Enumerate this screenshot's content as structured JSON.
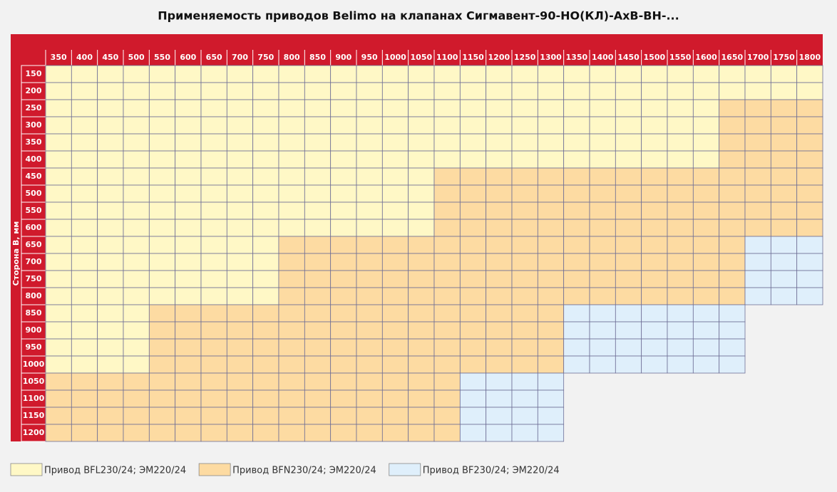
{
  "title": "Применяемость приводов Belimo на клапанах Сигмавент-90-НО(КЛ)-АхВ-ВН-...",
  "row_axis_label": "Сторона B, мм",
  "columns": [
    "350",
    "400",
    "450",
    "500",
    "550",
    "600",
    "650",
    "700",
    "750",
    "800",
    "850",
    "900",
    "950",
    "1000",
    "1050",
    "1100",
    "1150",
    "1200",
    "1250",
    "1300",
    "1350",
    "1400",
    "1450",
    "1500",
    "1550",
    "1600",
    "1650",
    "1700",
    "1750",
    "1800"
  ],
  "legend": [
    {
      "label": "Привод BFL230/24; ЭМ220/24",
      "color": "#fff8c6"
    },
    {
      "label": "Привод BFN230/24; ЭМ220/24",
      "color": "#fddba2"
    },
    {
      "label": "Привод BF230/24; ЭМ220/24",
      "color": "#dfeffb"
    }
  ],
  "rows": [
    {
      "label": "150",
      "cells": [
        0,
        0,
        0,
        0,
        0,
        0,
        0,
        0,
        0,
        0,
        0,
        0,
        0,
        0,
        0,
        0,
        0,
        0,
        0,
        0,
        0,
        0,
        0,
        0,
        0,
        0,
        0,
        0,
        0,
        0
      ]
    },
    {
      "label": "200",
      "cells": [
        0,
        0,
        0,
        0,
        0,
        0,
        0,
        0,
        0,
        0,
        0,
        0,
        0,
        0,
        0,
        0,
        0,
        0,
        0,
        0,
        0,
        0,
        0,
        0,
        0,
        0,
        0,
        0,
        0,
        0
      ]
    },
    {
      "label": "250",
      "cells": [
        0,
        0,
        0,
        0,
        0,
        0,
        0,
        0,
        0,
        0,
        0,
        0,
        0,
        0,
        0,
        0,
        0,
        0,
        0,
        0,
        0,
        0,
        0,
        0,
        0,
        0,
        1,
        1,
        1,
        1
      ]
    },
    {
      "label": "300",
      "cells": [
        0,
        0,
        0,
        0,
        0,
        0,
        0,
        0,
        0,
        0,
        0,
        0,
        0,
        0,
        0,
        0,
        0,
        0,
        0,
        0,
        0,
        0,
        0,
        0,
        0,
        0,
        1,
        1,
        1,
        1
      ]
    },
    {
      "label": "350",
      "cells": [
        0,
        0,
        0,
        0,
        0,
        0,
        0,
        0,
        0,
        0,
        0,
        0,
        0,
        0,
        0,
        0,
        0,
        0,
        0,
        0,
        0,
        0,
        0,
        0,
        0,
        0,
        1,
        1,
        1,
        1
      ]
    },
    {
      "label": "400",
      "cells": [
        0,
        0,
        0,
        0,
        0,
        0,
        0,
        0,
        0,
        0,
        0,
        0,
        0,
        0,
        0,
        0,
        0,
        0,
        0,
        0,
        0,
        0,
        0,
        0,
        0,
        0,
        1,
        1,
        1,
        1
      ]
    },
    {
      "label": "450",
      "cells": [
        0,
        0,
        0,
        0,
        0,
        0,
        0,
        0,
        0,
        0,
        0,
        0,
        0,
        0,
        0,
        1,
        1,
        1,
        1,
        1,
        1,
        1,
        1,
        1,
        1,
        1,
        1,
        1,
        1,
        1
      ]
    },
    {
      "label": "500",
      "cells": [
        0,
        0,
        0,
        0,
        0,
        0,
        0,
        0,
        0,
        0,
        0,
        0,
        0,
        0,
        0,
        1,
        1,
        1,
        1,
        1,
        1,
        1,
        1,
        1,
        1,
        1,
        1,
        1,
        1,
        1
      ]
    },
    {
      "label": "550",
      "cells": [
        0,
        0,
        0,
        0,
        0,
        0,
        0,
        0,
        0,
        0,
        0,
        0,
        0,
        0,
        0,
        1,
        1,
        1,
        1,
        1,
        1,
        1,
        1,
        1,
        1,
        1,
        1,
        1,
        1,
        1
      ]
    },
    {
      "label": "600",
      "cells": [
        0,
        0,
        0,
        0,
        0,
        0,
        0,
        0,
        0,
        0,
        0,
        0,
        0,
        0,
        0,
        1,
        1,
        1,
        1,
        1,
        1,
        1,
        1,
        1,
        1,
        1,
        1,
        1,
        1,
        1
      ]
    },
    {
      "label": "650",
      "cells": [
        0,
        0,
        0,
        0,
        0,
        0,
        0,
        0,
        0,
        1,
        1,
        1,
        1,
        1,
        1,
        1,
        1,
        1,
        1,
        1,
        1,
        1,
        1,
        1,
        1,
        1,
        1,
        2,
        2,
        2
      ]
    },
    {
      "label": "700",
      "cells": [
        0,
        0,
        0,
        0,
        0,
        0,
        0,
        0,
        0,
        1,
        1,
        1,
        1,
        1,
        1,
        1,
        1,
        1,
        1,
        1,
        1,
        1,
        1,
        1,
        1,
        1,
        1,
        2,
        2,
        2
      ]
    },
    {
      "label": "750",
      "cells": [
        0,
        0,
        0,
        0,
        0,
        0,
        0,
        0,
        0,
        1,
        1,
        1,
        1,
        1,
        1,
        1,
        1,
        1,
        1,
        1,
        1,
        1,
        1,
        1,
        1,
        1,
        1,
        2,
        2,
        2
      ]
    },
    {
      "label": "800",
      "cells": [
        0,
        0,
        0,
        0,
        0,
        0,
        0,
        0,
        0,
        1,
        1,
        1,
        1,
        1,
        1,
        1,
        1,
        1,
        1,
        1,
        1,
        1,
        1,
        1,
        1,
        1,
        1,
        2,
        2,
        2
      ]
    },
    {
      "label": "850",
      "cells": [
        0,
        0,
        0,
        0,
        1,
        1,
        1,
        1,
        1,
        1,
        1,
        1,
        1,
        1,
        1,
        1,
        1,
        1,
        1,
        1,
        2,
        2,
        2,
        2,
        2,
        2,
        2,
        null,
        null,
        null
      ]
    },
    {
      "label": "900",
      "cells": [
        0,
        0,
        0,
        0,
        1,
        1,
        1,
        1,
        1,
        1,
        1,
        1,
        1,
        1,
        1,
        1,
        1,
        1,
        1,
        1,
        2,
        2,
        2,
        2,
        2,
        2,
        2,
        null,
        null,
        null
      ]
    },
    {
      "label": "950",
      "cells": [
        0,
        0,
        0,
        0,
        1,
        1,
        1,
        1,
        1,
        1,
        1,
        1,
        1,
        1,
        1,
        1,
        1,
        1,
        1,
        1,
        2,
        2,
        2,
        2,
        2,
        2,
        2,
        null,
        null,
        null
      ]
    },
    {
      "label": "1000",
      "cells": [
        0,
        0,
        0,
        0,
        1,
        1,
        1,
        1,
        1,
        1,
        1,
        1,
        1,
        1,
        1,
        1,
        1,
        1,
        1,
        1,
        2,
        2,
        2,
        2,
        2,
        2,
        2,
        null,
        null,
        null
      ]
    },
    {
      "label": "1050",
      "cells": [
        1,
        1,
        1,
        1,
        1,
        1,
        1,
        1,
        1,
        1,
        1,
        1,
        1,
        1,
        1,
        1,
        2,
        2,
        2,
        2,
        null,
        null,
        null,
        null,
        null,
        null,
        null,
        null,
        null,
        null
      ]
    },
    {
      "label": "1100",
      "cells": [
        1,
        1,
        1,
        1,
        1,
        1,
        1,
        1,
        1,
        1,
        1,
        1,
        1,
        1,
        1,
        1,
        2,
        2,
        2,
        2,
        null,
        null,
        null,
        null,
        null,
        null,
        null,
        null,
        null,
        null
      ]
    },
    {
      "label": "1150",
      "cells": [
        1,
        1,
        1,
        1,
        1,
        1,
        1,
        1,
        1,
        1,
        1,
        1,
        1,
        1,
        1,
        1,
        2,
        2,
        2,
        2,
        null,
        null,
        null,
        null,
        null,
        null,
        null,
        null,
        null,
        null
      ]
    },
    {
      "label": "1200",
      "cells": [
        1,
        1,
        1,
        1,
        1,
        1,
        1,
        1,
        1,
        1,
        1,
        1,
        1,
        1,
        1,
        1,
        2,
        2,
        2,
        2,
        null,
        null,
        null,
        null,
        null,
        null,
        null,
        null,
        null,
        null
      ]
    }
  ]
}
